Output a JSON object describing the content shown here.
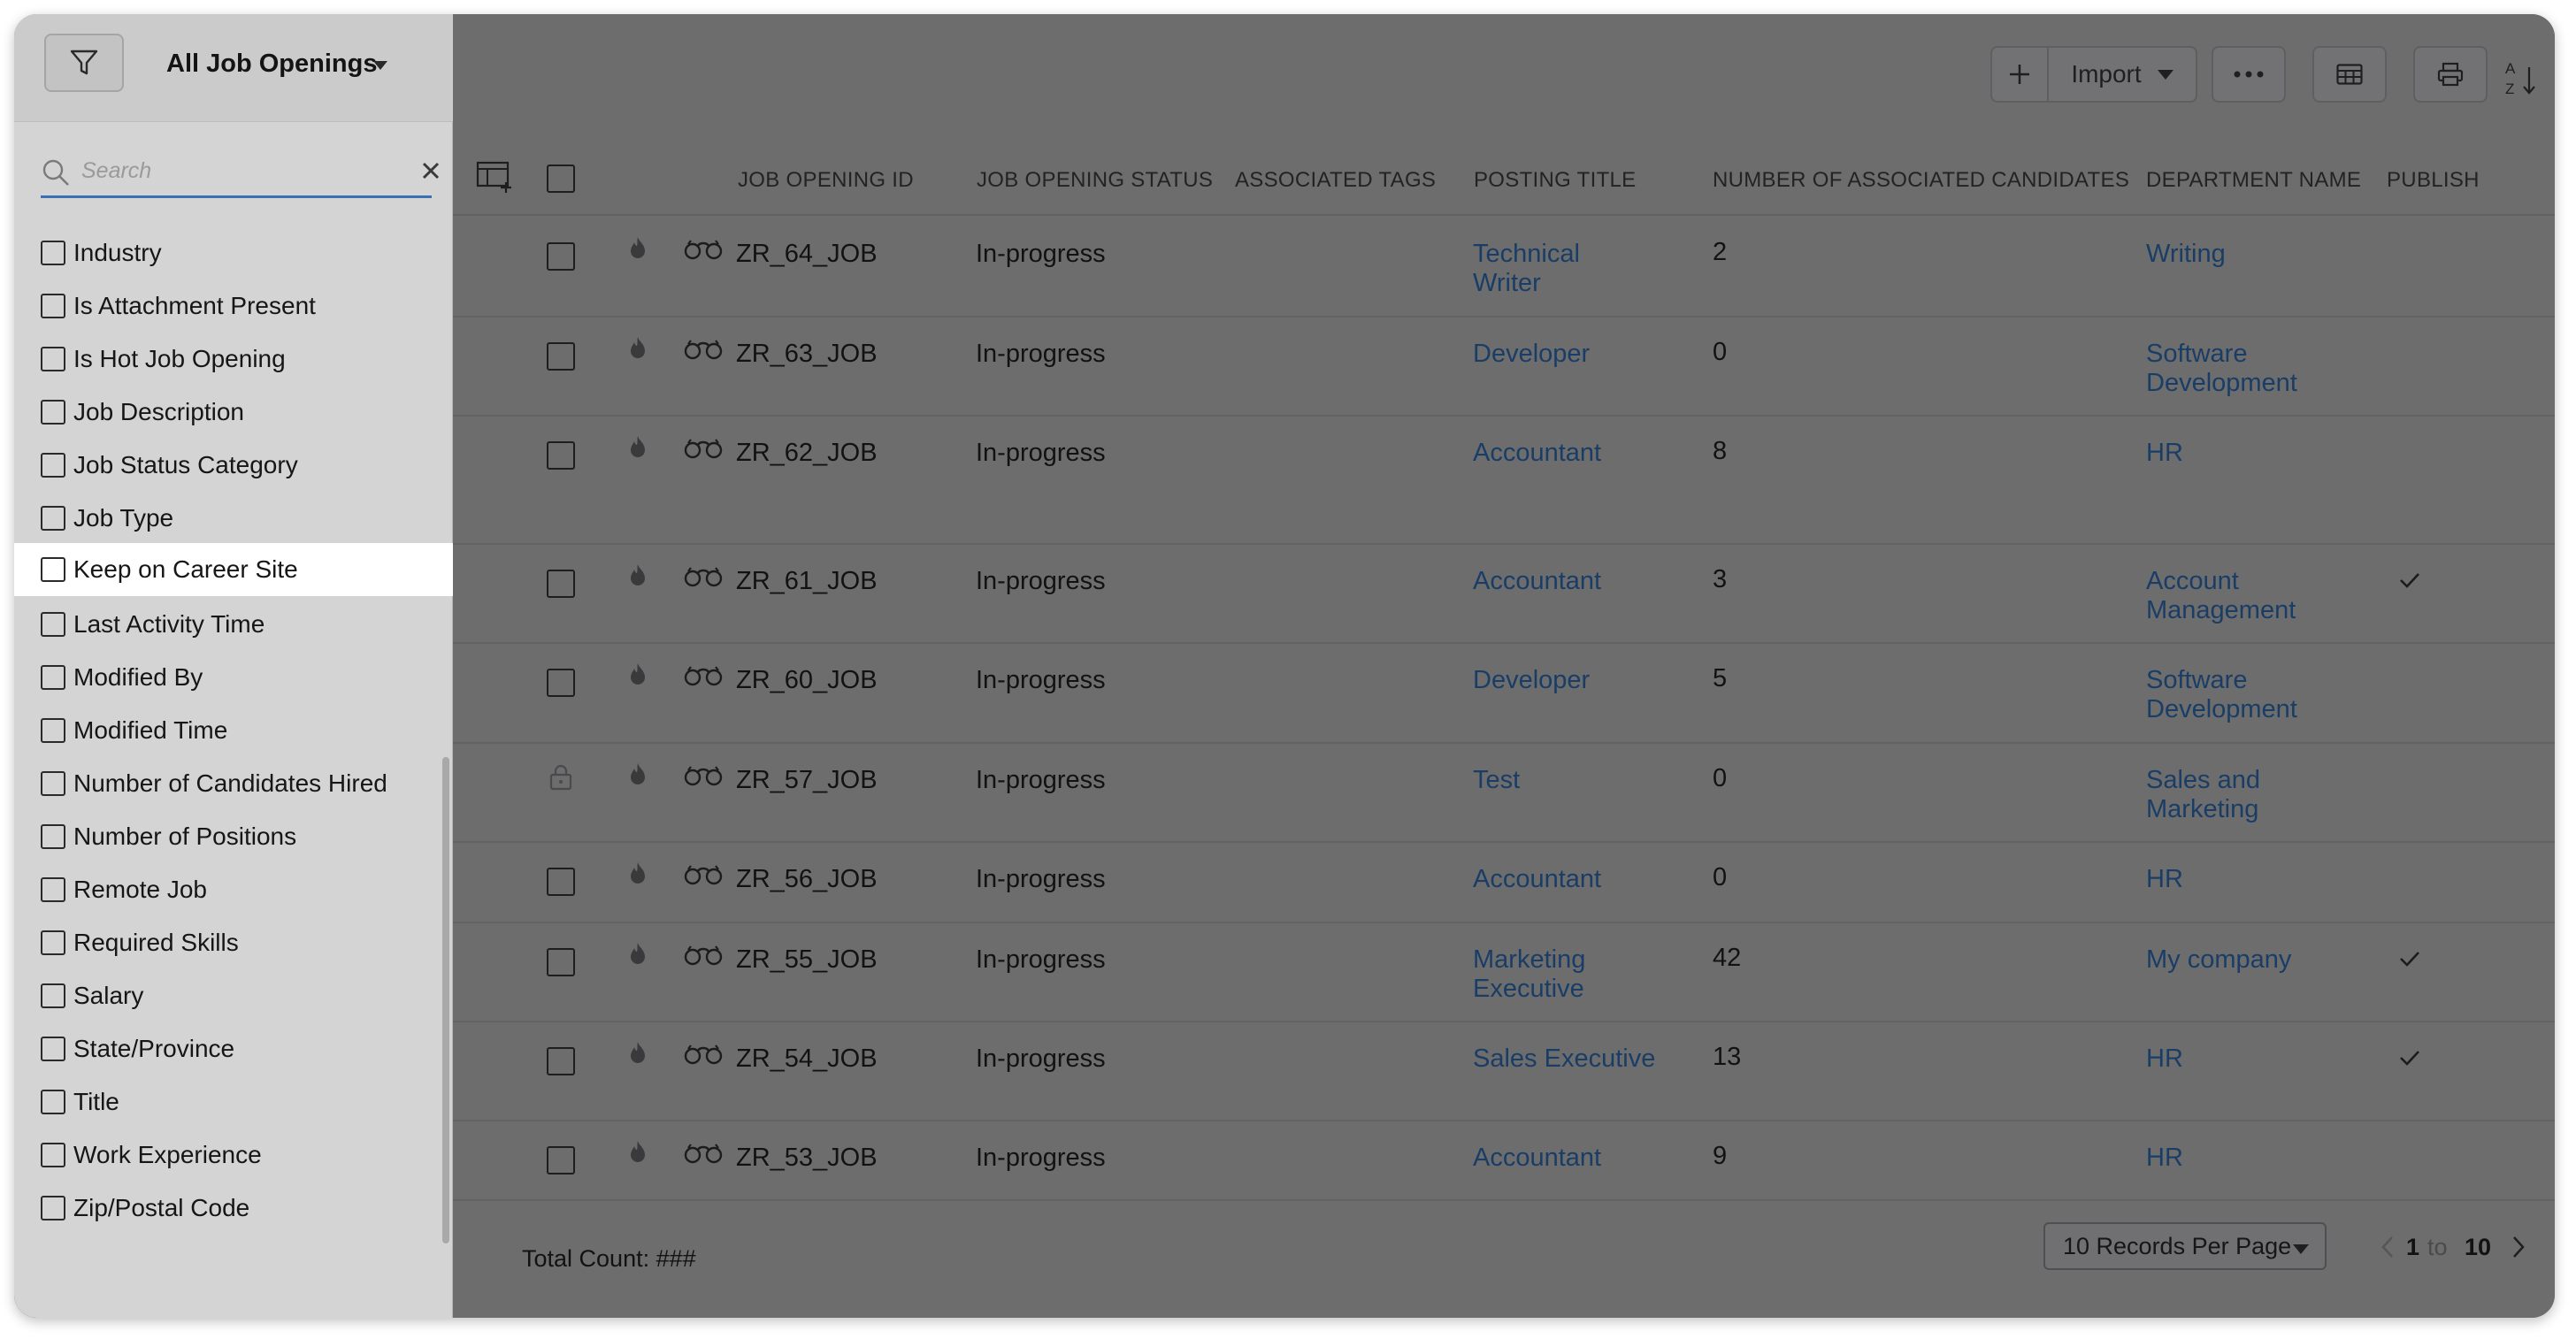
{
  "panel": {
    "view_title": "All Job Openings",
    "search_placeholder": "Search",
    "fields": [
      "Industry",
      "Is Attachment Present",
      "Is Hot Job Opening",
      "Job Description",
      "Job Status Category",
      "Job Type",
      "Keep on Career Site",
      "Last Activity Time",
      "Modified By",
      "Modified Time",
      "Number of Candidates Hired",
      "Number of Positions",
      "Remote Job",
      "Required Skills",
      "Salary",
      "State/Province",
      "Title",
      "Work Experience",
      "Zip/Postal Code"
    ],
    "highlighted_field": "Keep on Career Site"
  },
  "toolbar": {
    "import_label": "Import"
  },
  "table": {
    "headers": {
      "job_opening_id": "JOB OPENING ID",
      "job_opening_status": "JOB OPENING STATUS",
      "associated_tags": "ASSOCIATED TAGS",
      "posting_title": "POSTING TITLE",
      "candidates": "NUMBER OF ASSOCIATED CANDIDATES",
      "department": "DEPARTMENT NAME",
      "publish": "PUBLISH"
    },
    "rows": [
      {
        "id": "ZR_64_JOB",
        "status": "In-progress",
        "title": [
          "Technical",
          "Writer"
        ],
        "candidates": "2",
        "department": [
          "Writing"
        ],
        "published": false,
        "locked": false
      },
      {
        "id": "ZR_63_JOB",
        "status": "In-progress",
        "title": [
          "Developer"
        ],
        "candidates": "0",
        "department": [
          "Software",
          "Development"
        ],
        "published": false,
        "locked": false
      },
      {
        "id": "ZR_62_JOB",
        "status": "In-progress",
        "title": [
          "Accountant"
        ],
        "candidates": "8",
        "department": [
          "HR"
        ],
        "published": false,
        "locked": false
      },
      {
        "id": "ZR_61_JOB",
        "status": "In-progress",
        "title": [
          "Accountant"
        ],
        "candidates": "3",
        "department": [
          "Account",
          "Management"
        ],
        "published": true,
        "locked": false
      },
      {
        "id": "ZR_60_JOB",
        "status": "In-progress",
        "title": [
          "Developer"
        ],
        "candidates": "5",
        "department": [
          "Software",
          "Development"
        ],
        "published": false,
        "locked": false
      },
      {
        "id": "ZR_57_JOB",
        "status": "In-progress",
        "title": [
          "Test"
        ],
        "candidates": "0",
        "department": [
          "Sales and",
          "Marketing"
        ],
        "published": false,
        "locked": true
      },
      {
        "id": "ZR_56_JOB",
        "status": "In-progress",
        "title": [
          "Accountant"
        ],
        "candidates": "0",
        "department": [
          "HR"
        ],
        "published": false,
        "locked": false
      },
      {
        "id": "ZR_55_JOB",
        "status": "In-progress",
        "title": [
          "Marketing",
          "Executive"
        ],
        "candidates": "42",
        "department": [
          "My company"
        ],
        "published": true,
        "locked": false
      },
      {
        "id": "ZR_54_JOB",
        "status": "In-progress",
        "title": [
          "Sales Executive"
        ],
        "candidates": "13",
        "department": [
          "HR"
        ],
        "published": true,
        "locked": false
      },
      {
        "id": "ZR_53_JOB",
        "status": "In-progress",
        "title": [
          "Accountant"
        ],
        "candidates": "9",
        "department": [
          "HR"
        ],
        "published": false,
        "locked": false
      }
    ]
  },
  "footer": {
    "total_count": "Total Count: ###",
    "records_per_page": "10 Records Per Page",
    "range_start": "1",
    "range_to": "to",
    "range_end": "10"
  },
  "colors": {
    "link": "#1a3d66",
    "search_underline": "#3b6fb3",
    "overlay_dim": "#6d6d6e"
  }
}
